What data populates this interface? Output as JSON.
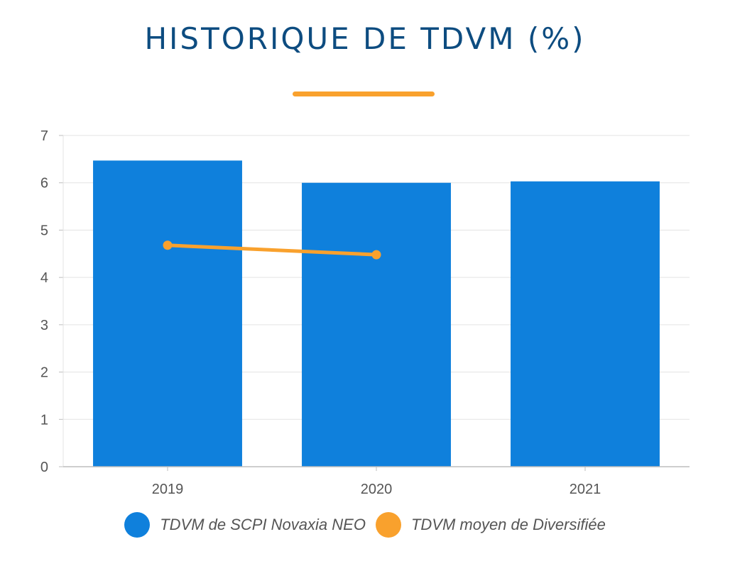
{
  "colors": {
    "title": "#0d4c80",
    "accent": "#f9a12d",
    "bar": "#0f80dc",
    "grid": "#e3e3e3",
    "axis": "#bdbdbd"
  },
  "chart_data": {
    "type": "bar",
    "title": "HISTORIQUE DE TDVM (%)",
    "categories": [
      "2019",
      "2020",
      "2021"
    ],
    "ylim": [
      0,
      7
    ],
    "yticks": [
      0,
      1,
      2,
      3,
      4,
      5,
      6,
      7
    ],
    "grid": true,
    "legend_position": "bottom",
    "series": [
      {
        "name": "TDVM de SCPI Novaxia NEO",
        "type": "bar",
        "color": "#0f80dc",
        "values": [
          6.47,
          6.0,
          6.03
        ]
      },
      {
        "name": "TDVM moyen de Diversifiée",
        "type": "line",
        "color": "#f9a12d",
        "values": [
          4.68,
          4.48,
          null
        ]
      }
    ]
  }
}
